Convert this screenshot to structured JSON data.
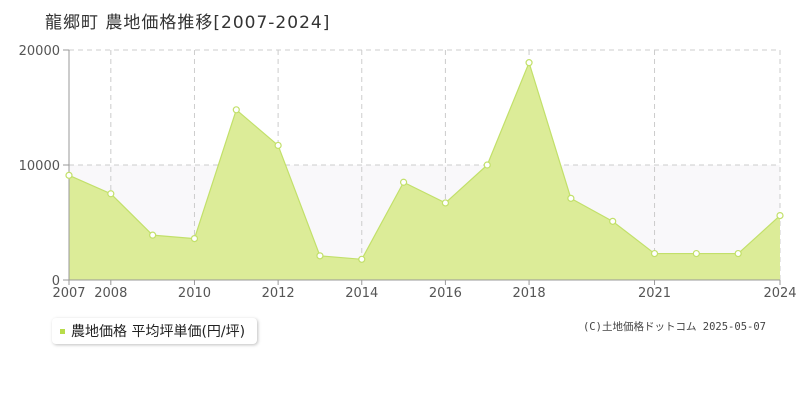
{
  "title": "龍郷町 農地価格推移[2007-2024]",
  "colors": {
    "fill": "#dcec98",
    "line": "#c2e06a",
    "band": "#f9f8fa",
    "grid": "#cccccc",
    "axis": "#999999",
    "marker_stroke": "#c2e06a",
    "marker_fill": "#ffffff",
    "legend_marker": "#b8dc4a"
  },
  "legend": {
    "label": "農地価格 平均坪単価(円/坪)"
  },
  "copyright": "(C)土地価格ドットコム 2025-05-07",
  "chart_data": {
    "type": "area",
    "x": [
      2007,
      2008,
      2009,
      2010,
      2011,
      2012,
      2013,
      2014,
      2015,
      2016,
      2017,
      2018,
      2019,
      2020,
      2021,
      2022,
      2023,
      2024
    ],
    "series": [
      {
        "name": "農地価格 平均坪単価(円/坪)",
        "values": [
          9100,
          7500,
          3900,
          3600,
          14800,
          11700,
          2100,
          1800,
          8500,
          6700,
          10000,
          18900,
          7100,
          5100,
          2300,
          2300,
          2300,
          5600
        ]
      }
    ],
    "xlim": [
      2007,
      2024
    ],
    "ylim": [
      0,
      20000
    ],
    "y_ticks": [
      0,
      10000,
      20000
    ],
    "y_tick_labels": [
      "0",
      "10000",
      "20000"
    ],
    "x_tick_labels": [
      "2007",
      "2008",
      "2010",
      "2012",
      "2014",
      "2016",
      "2018",
      "2021",
      "2024"
    ],
    "grid": true,
    "legend_position": "bottom-left"
  }
}
